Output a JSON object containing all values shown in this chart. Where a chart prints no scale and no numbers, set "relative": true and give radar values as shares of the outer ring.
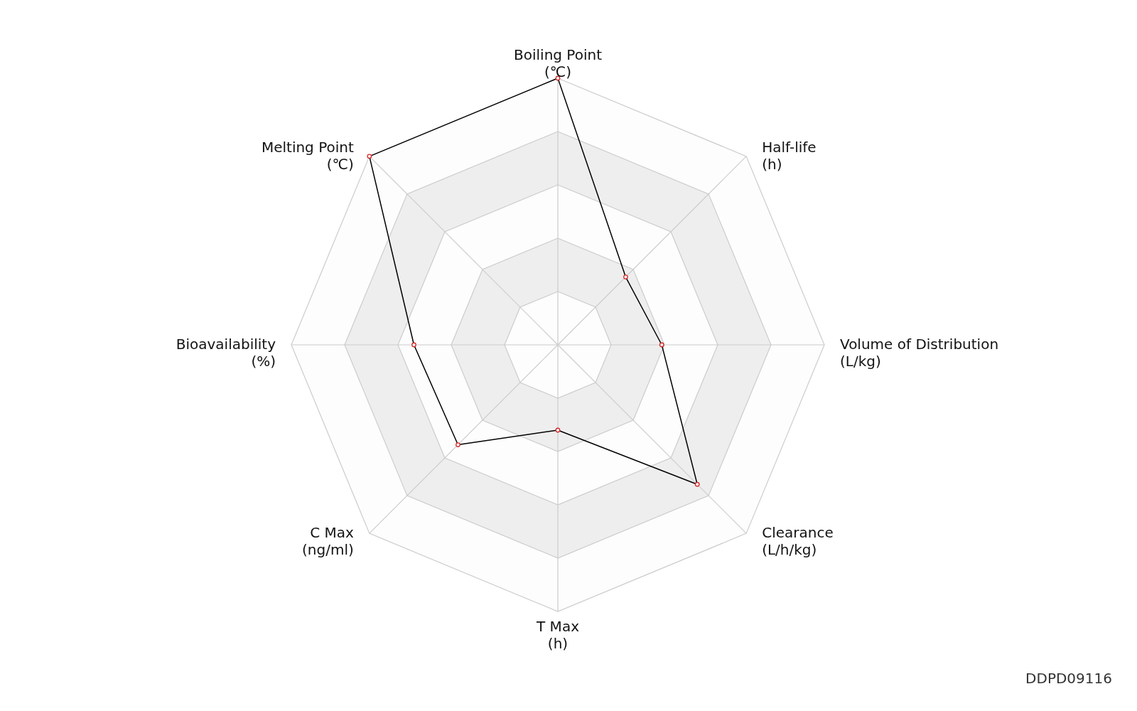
{
  "chart_data": {
    "type": "radar",
    "relative": true,
    "grid": true,
    "marker": "circle",
    "categories": [
      "Boiling Point\n(℃)",
      "Half-life\n(h)",
      "Volume of Distribution\n(L/kg)",
      "Clearance\n(L/h/kg)",
      "T Max\n(h)",
      "C Max\n(ng/ml)",
      "Bioavailability\n(%)",
      "Melting Point\n(℃)"
    ],
    "series": [
      {
        "color": "#000000",
        "values": [
          1.0,
          0.36,
          0.39,
          0.74,
          0.32,
          0.53,
          0.54,
          1.0
        ]
      }
    ],
    "annotations": [
      "DDPD09116"
    ]
  }
}
